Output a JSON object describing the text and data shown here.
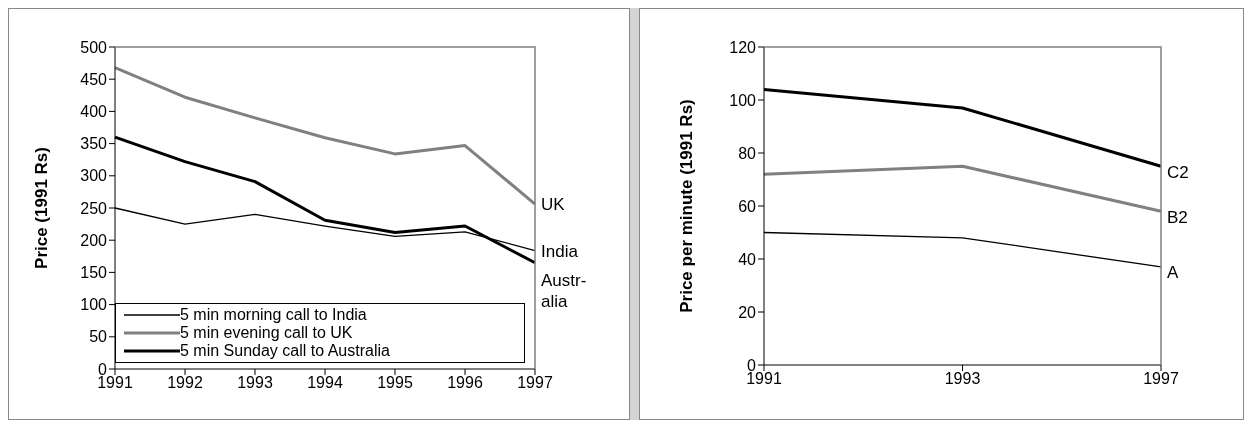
{
  "chart_data": [
    {
      "type": "line",
      "ylabel": "Price (1991 Rs)",
      "categories": [
        "1991",
        "1992",
        "1993",
        "1994",
        "1995",
        "1996",
        "1997"
      ],
      "ylim": [
        0,
        500
      ],
      "yticks": [
        0,
        50,
        100,
        150,
        200,
        250,
        300,
        350,
        400,
        450,
        500
      ],
      "grid": false,
      "legend": "bottom left",
      "series": [
        {
          "name": "5 min morning call to India",
          "color": "#000000",
          "values": [
            250,
            225,
            240,
            222,
            206,
            213,
            184
          ]
        },
        {
          "name": "5 min evening call to UK",
          "color": "#808080",
          "values": [
            468,
            422,
            390,
            359,
            334,
            347,
            256
          ]
        },
        {
          "name": "5 min Sunday call to Australia",
          "color": "#000000",
          "values": [
            360,
            322,
            291,
            231,
            212,
            222,
            165
          ]
        }
      ],
      "annotations": [
        {
          "text": "UK",
          "x": "1997",
          "y": 256
        },
        {
          "text": "India",
          "x": "1997",
          "y": 184
        },
        {
          "text": "Austr-\nalia",
          "x": "1997",
          "y": 165
        }
      ]
    },
    {
      "type": "line",
      "ylabel": "Price per minute (1991 Rs)",
      "categories": [
        "1991",
        "1993",
        "1997"
      ],
      "ylim": [
        0,
        120
      ],
      "yticks": [
        0,
        20,
        40,
        60,
        80,
        100,
        120
      ],
      "grid": false,
      "legend": false,
      "series": [
        {
          "name": "C2",
          "color": "#000000",
          "values": [
            104,
            97,
            75
          ]
        },
        {
          "name": "B2",
          "color": "#808080",
          "values": [
            72,
            75,
            58
          ]
        },
        {
          "name": "A",
          "color": "#000000",
          "values": [
            50,
            48,
            37
          ]
        }
      ]
    }
  ]
}
